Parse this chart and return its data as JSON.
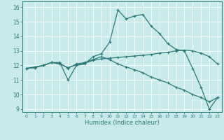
{
  "xlabel": "Humidex (Indice chaleur)",
  "background_color": "#c8eaea",
  "grid_color": "#ffffff",
  "line_color": "#2a7a7a",
  "xlim": [
    -0.5,
    23.5
  ],
  "ylim": [
    8.8,
    16.4
  ],
  "yticks": [
    9,
    10,
    11,
    12,
    13,
    14,
    15,
    16
  ],
  "xticks": [
    0,
    1,
    2,
    3,
    4,
    5,
    6,
    7,
    8,
    9,
    10,
    11,
    12,
    13,
    14,
    15,
    16,
    17,
    18,
    19,
    20,
    21,
    22,
    23
  ],
  "series": [
    [
      11.8,
      11.9,
      12.0,
      12.2,
      12.2,
      11.0,
      12.0,
      12.1,
      12.6,
      12.8,
      13.6,
      15.8,
      15.2,
      15.4,
      15.5,
      14.7,
      14.2,
      13.5,
      13.1,
      13.0,
      11.8,
      10.5,
      9.0,
      9.8
    ],
    [
      11.8,
      11.85,
      12.0,
      12.2,
      12.1,
      11.85,
      12.05,
      12.15,
      12.35,
      12.45,
      12.5,
      12.55,
      12.6,
      12.65,
      12.7,
      12.75,
      12.85,
      12.9,
      13.0,
      13.05,
      13.0,
      12.85,
      12.6,
      12.1
    ],
    [
      11.8,
      11.85,
      12.0,
      12.2,
      12.15,
      11.8,
      12.1,
      12.2,
      12.4,
      12.6,
      12.4,
      12.1,
      11.9,
      11.7,
      11.5,
      11.2,
      11.0,
      10.8,
      10.5,
      10.3,
      10.0,
      9.8,
      9.5,
      9.8
    ]
  ]
}
